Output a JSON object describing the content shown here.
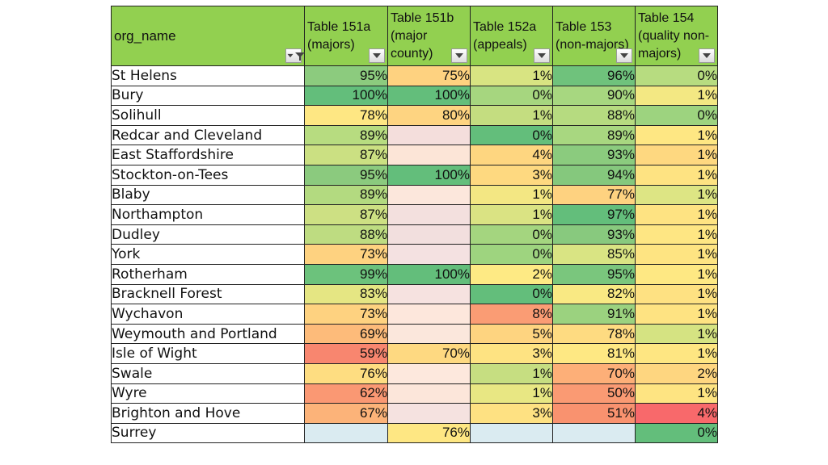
{
  "columns": [
    {
      "label": "org_name",
      "filtered": true
    },
    {
      "label": "Table 151a (majors)",
      "filtered": false
    },
    {
      "label": "Table 151b (major county)",
      "filtered": false
    },
    {
      "label": "Table 152a (appeals)",
      "filtered": false
    },
    {
      "label": "Table 153 (non-majors)",
      "filtered": false
    },
    {
      "label": "Table 154 (quality non-majors)",
      "filtered": false
    }
  ],
  "rows": [
    {
      "name": "St Helens",
      "cells": [
        {
          "v": "95%",
          "c": "#8ccb7e"
        },
        {
          "v": "75%",
          "c": "#fed280"
        },
        {
          "v": "1%",
          "c": "#d8e482"
        },
        {
          "v": "96%",
          "c": "#6fc27c"
        },
        {
          "v": "0%",
          "c": "#b7dc80"
        }
      ]
    },
    {
      "name": "Bury",
      "cells": [
        {
          "v": "100%",
          "c": "#63be7b"
        },
        {
          "v": "100%",
          "c": "#63be7b"
        },
        {
          "v": "0%",
          "c": "#a6d67f"
        },
        {
          "v": "90%",
          "c": "#a7d780"
        },
        {
          "v": "1%",
          "c": "#f3e883"
        }
      ]
    },
    {
      "name": "Solihull",
      "cells": [
        {
          "v": "78%",
          "c": "#fee783"
        },
        {
          "v": "80%",
          "c": "#fed481"
        },
        {
          "v": "1%",
          "c": "#c4dd80"
        },
        {
          "v": "88%",
          "c": "#b6db80"
        },
        {
          "v": "0%",
          "c": "#9dd37f"
        }
      ]
    },
    {
      "name": "Redcar and Cleveland",
      "cells": [
        {
          "v": "89%",
          "c": "#b7dc80"
        },
        {
          "v": "",
          "c": "#f4dedc"
        },
        {
          "v": "0%",
          "c": "#63be7b"
        },
        {
          "v": "89%",
          "c": "#a8d780"
        },
        {
          "v": "1%",
          "c": "#fee783"
        }
      ]
    },
    {
      "name": "East Staffordshire",
      "cells": [
        {
          "v": "87%",
          "c": "#cbe082"
        },
        {
          "v": "",
          "c": "#fce5d7"
        },
        {
          "v": "4%",
          "c": "#fed680"
        },
        {
          "v": "93%",
          "c": "#8bcb7e"
        },
        {
          "v": "1%",
          "c": "#fed880"
        }
      ]
    },
    {
      "name": "Stockton-on-Tees",
      "cells": [
        {
          "v": "95%",
          "c": "#8bca7e"
        },
        {
          "v": "100%",
          "c": "#63be7b"
        },
        {
          "v": "3%",
          "c": "#fed980"
        },
        {
          "v": "94%",
          "c": "#85c87d"
        },
        {
          "v": "1%",
          "c": "#fee382"
        }
      ]
    },
    {
      "name": "Blaby",
      "cells": [
        {
          "v": "89%",
          "c": "#b3da80"
        },
        {
          "v": "",
          "c": "#fce7dc"
        },
        {
          "v": "1%",
          "c": "#f3e783"
        },
        {
          "v": "77%",
          "c": "#fed280"
        },
        {
          "v": "1%",
          "c": "#dde584"
        }
      ]
    },
    {
      "name": "Northampton",
      "cells": [
        {
          "v": "87%",
          "c": "#cde083"
        },
        {
          "v": "",
          "c": "#f3e0de"
        },
        {
          "v": "1%",
          "c": "#dae383"
        },
        {
          "v": "97%",
          "c": "#63be7b"
        },
        {
          "v": "1%",
          "c": "#fee382"
        }
      ]
    },
    {
      "name": "Dudley",
      "cells": [
        {
          "v": "88%",
          "c": "#bedc81"
        },
        {
          "v": "",
          "c": "#f2dfde"
        },
        {
          "v": "0%",
          "c": "#a4d57f"
        },
        {
          "v": "93%",
          "c": "#88c97e"
        },
        {
          "v": "1%",
          "c": "#fee683"
        }
      ]
    },
    {
      "name": "York",
      "cells": [
        {
          "v": "73%",
          "c": "#fed280"
        },
        {
          "v": "",
          "c": "#f4e1e1"
        },
        {
          "v": "0%",
          "c": "#9ed47f"
        },
        {
          "v": "85%",
          "c": "#d9e483"
        },
        {
          "v": "1%",
          "c": "#fee482"
        }
      ]
    },
    {
      "name": "Rotherham",
      "cells": [
        {
          "v": "99%",
          "c": "#6cc27c"
        },
        {
          "v": "100%",
          "c": "#63be7b"
        },
        {
          "v": "2%",
          "c": "#feea84"
        },
        {
          "v": "95%",
          "c": "#7ac67d"
        },
        {
          "v": "1%",
          "c": "#fee883"
        }
      ]
    },
    {
      "name": "Bracknell Forest",
      "cells": [
        {
          "v": "83%",
          "c": "#e5e683"
        },
        {
          "v": "",
          "c": "#f6e2e0"
        },
        {
          "v": "0%",
          "c": "#63be7b"
        },
        {
          "v": "82%",
          "c": "#f9e983"
        },
        {
          "v": "1%",
          "c": "#fee182"
        }
      ]
    },
    {
      "name": "Wychavon",
      "cells": [
        {
          "v": "73%",
          "c": "#fed280"
        },
        {
          "v": "",
          "c": "#fde7dc"
        },
        {
          "v": "8%",
          "c": "#fa9c74"
        },
        {
          "v": "91%",
          "c": "#9bd27f"
        },
        {
          "v": "1%",
          "c": "#fee382"
        }
      ]
    },
    {
      "name": "Weymouth and Portland",
      "cells": [
        {
          "v": "69%",
          "c": "#fdbb7a"
        },
        {
          "v": "",
          "c": "#fbe7dc"
        },
        {
          "v": "5%",
          "c": "#fed480"
        },
        {
          "v": "78%",
          "c": "#fedb81"
        },
        {
          "v": "1%",
          "c": "#d5e382"
        }
      ]
    },
    {
      "name": "Isle of Wight",
      "cells": [
        {
          "v": "59%",
          "c": "#f8866f"
        },
        {
          "v": "70%",
          "c": "#fed981"
        },
        {
          "v": "3%",
          "c": "#fee382"
        },
        {
          "v": "81%",
          "c": "#fee883"
        },
        {
          "v": "1%",
          "c": "#fee682"
        }
      ]
    },
    {
      "name": "Swale",
      "cells": [
        {
          "v": "76%",
          "c": "#fedd81"
        },
        {
          "v": "",
          "c": "#fde8dd"
        },
        {
          "v": "1%",
          "c": "#c6de81"
        },
        {
          "v": "70%",
          "c": "#fdaf78"
        },
        {
          "v": "2%",
          "c": "#fed680"
        }
      ]
    },
    {
      "name": "Wyre",
      "cells": [
        {
          "v": "62%",
          "c": "#fa9873"
        },
        {
          "v": "",
          "c": "#fce6da"
        },
        {
          "v": "1%",
          "c": "#e8e783"
        },
        {
          "v": "50%",
          "c": "#fa9a73"
        },
        {
          "v": "1%",
          "c": "#fee482"
        }
      ]
    },
    {
      "name": "Brighton and Hove",
      "cells": [
        {
          "v": "67%",
          "c": "#fcb379"
        },
        {
          "v": "",
          "c": "#f5e2e0"
        },
        {
          "v": "3%",
          "c": "#fee182"
        },
        {
          "v": "51%",
          "c": "#f9926f"
        },
        {
          "v": "4%",
          "c": "#f8696b"
        }
      ]
    },
    {
      "name": "Surrey",
      "cells": [
        {
          "v": "",
          "c": "#daebf1"
        },
        {
          "v": "76%",
          "c": "#fee783"
        },
        {
          "v": "",
          "c": "#daebf1"
        },
        {
          "v": "",
          "c": "#daebf1"
        },
        {
          "v": "0%",
          "c": "#63be7b"
        }
      ]
    }
  ]
}
